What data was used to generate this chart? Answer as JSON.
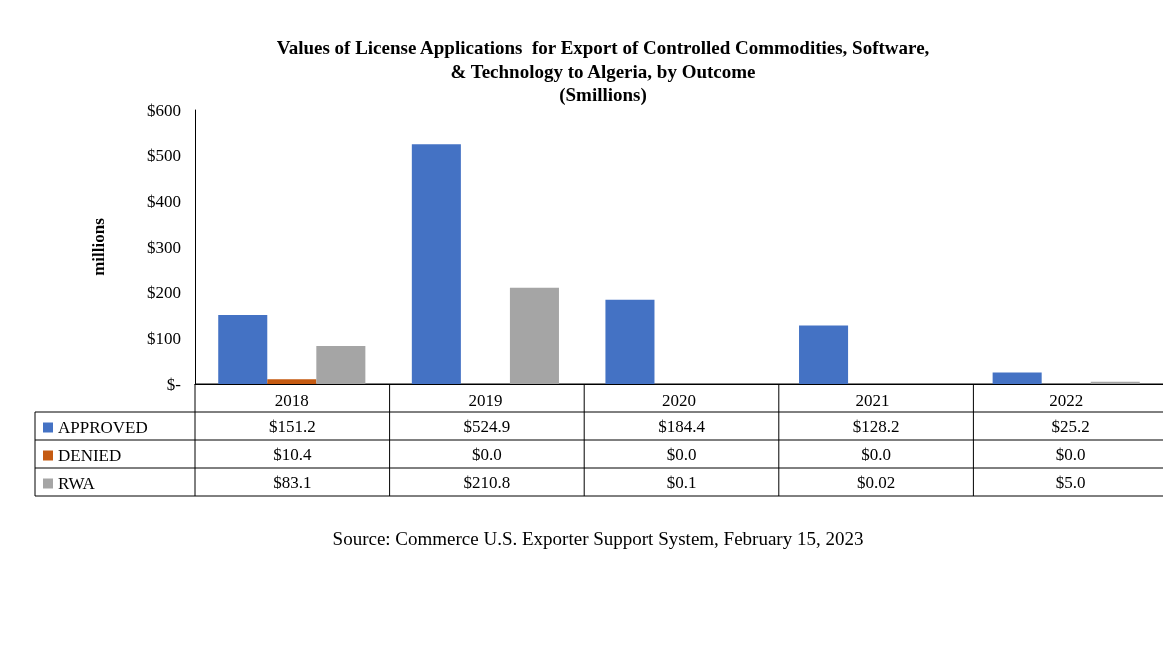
{
  "chart_data": {
    "type": "bar",
    "title": "Values of License Applications  for Export of Controlled Commodities, Software,\n& Technology to Algeria, by Outcome",
    "subtitle": "(Smillions)",
    "ylabel": "millions",
    "categories": [
      "2018",
      "2019",
      "2020",
      "2021",
      "2022"
    ],
    "series": [
      {
        "name": "APPROVED",
        "color": "#4472c4",
        "values": [
          151.2,
          524.9,
          184.4,
          128.2,
          25.2
        ],
        "value_labels": [
          "$151.2",
          "$524.9",
          "$184.4",
          "$128.2",
          "$25.2"
        ]
      },
      {
        "name": "DENIED",
        "color": "#c55a11",
        "values": [
          10.4,
          0.0,
          0.0,
          0.0,
          0.0
        ],
        "value_labels": [
          "$10.4",
          "$0.0",
          "$0.0",
          "$0.0",
          "$0.0"
        ]
      },
      {
        "name": "RWA",
        "color": "#a5a5a5",
        "values": [
          83.1,
          210.8,
          0.1,
          0.02,
          5.0
        ],
        "value_labels": [
          "$83.1",
          "$210.8",
          "$0.1",
          "$0.02",
          "$5.0"
        ]
      }
    ],
    "ylim": [
      0,
      600
    ],
    "yticks": [
      {
        "value": 0,
        "label": "$-"
      },
      {
        "value": 100,
        "label": "$100"
      },
      {
        "value": 200,
        "label": "$200"
      },
      {
        "value": 300,
        "label": "$300"
      },
      {
        "value": 400,
        "label": "$400"
      },
      {
        "value": 500,
        "label": "$500"
      },
      {
        "value": 600,
        "label": "$600"
      }
    ],
    "grid": false,
    "legend": "bottom left",
    "annotations": [
      "Source: Commerce U.S. Exporter Support System, February 15, 2023"
    ]
  }
}
